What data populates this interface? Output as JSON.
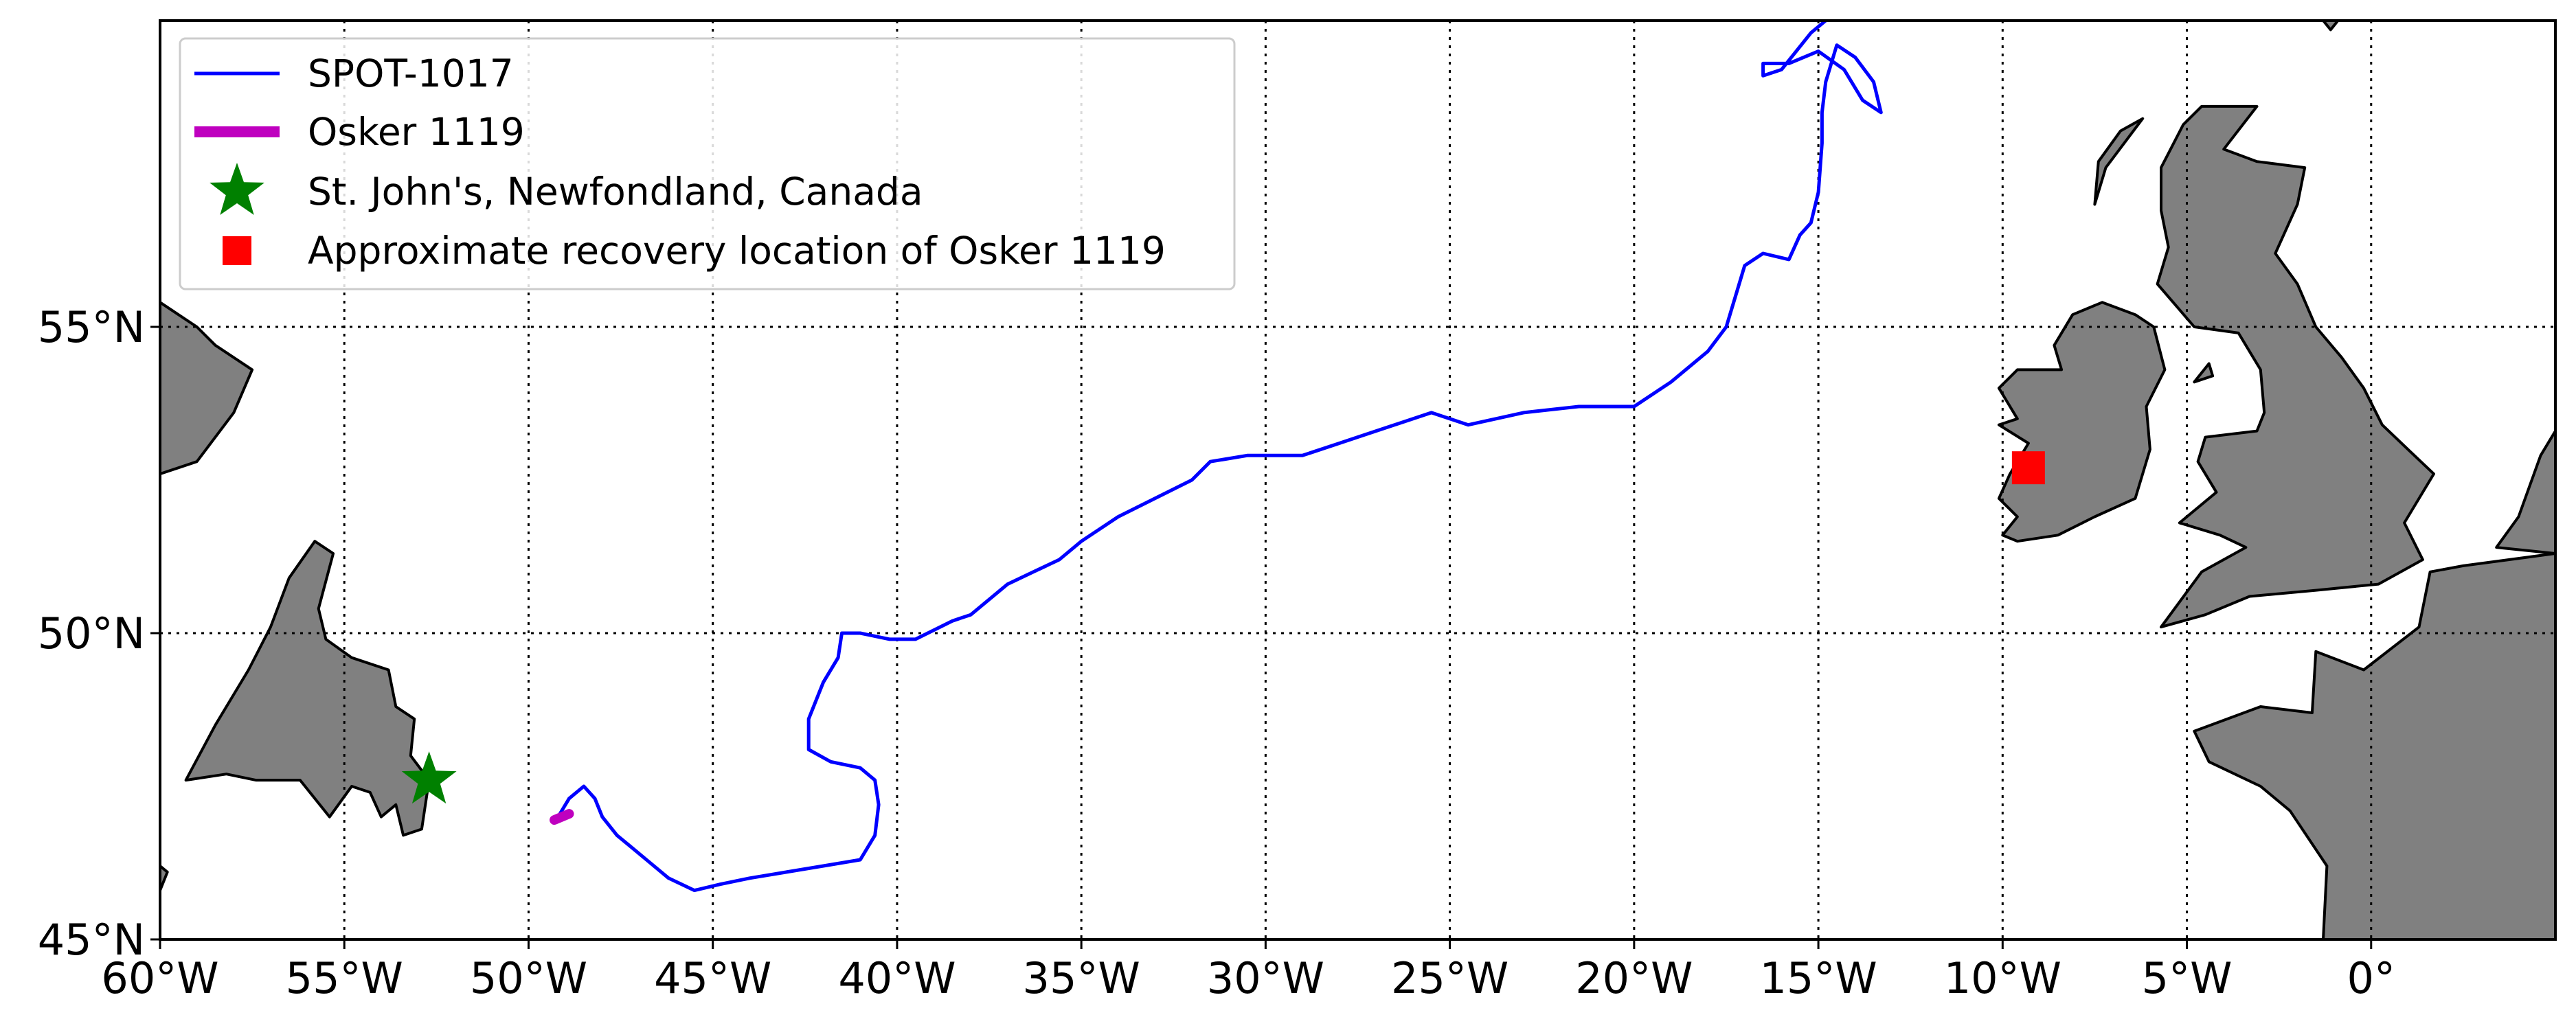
{
  "map": {
    "projection": "equirectangular",
    "lon_range": [
      -60,
      5
    ],
    "lat_range": [
      45,
      60
    ],
    "gridlines": "dotted",
    "x_ticks": [
      {
        "lon": -60,
        "label": "60°W"
      },
      {
        "lon": -55,
        "label": "55°W"
      },
      {
        "lon": -50,
        "label": "50°W"
      },
      {
        "lon": -45,
        "label": "45°W"
      },
      {
        "lon": -40,
        "label": "40°W"
      },
      {
        "lon": -35,
        "label": "35°W"
      },
      {
        "lon": -30,
        "label": "30°W"
      },
      {
        "lon": -25,
        "label": "25°W"
      },
      {
        "lon": -20,
        "label": "20°W"
      },
      {
        "lon": -15,
        "label": "15°W"
      },
      {
        "lon": -10,
        "label": "10°W"
      },
      {
        "lon": -5,
        "label": "5°W"
      },
      {
        "lon": 0,
        "label": "0°"
      }
    ],
    "y_ticks": [
      {
        "lat": 45,
        "label": "45°N"
      },
      {
        "lat": 50,
        "label": "50°N"
      },
      {
        "lat": 55,
        "label": "55°N"
      }
    ],
    "land_color": "#808080",
    "legend": {
      "position": "upper-left",
      "entries": [
        {
          "label": "SPOT-1017",
          "marker": "line",
          "color": "#0000ff"
        },
        {
          "label": "Osker 1119",
          "marker": "thick-line",
          "color": "#bf00bf"
        },
        {
          "label": "St. John's, Newfondland, Canada",
          "marker": "star",
          "color": "#008000"
        },
        {
          "label": "Approximate recovery location of Osker 1119",
          "marker": "square",
          "color": "#ff0000"
        }
      ]
    },
    "markers": {
      "st_johns": {
        "name": "St. John's, Newfondland, Canada",
        "lon": -52.7,
        "lat": 47.6,
        "color": "#008000",
        "shape": "star"
      },
      "recovery": {
        "name": "Approximate recovery location of Osker 1119",
        "lon": -9.3,
        "lat": 52.7,
        "color": "#ff0000",
        "shape": "square"
      }
    },
    "tracks": {
      "spot_1017": {
        "name": "SPOT-1017",
        "color": "#0000ff",
        "points": [
          [
            -49.2,
            47.0
          ],
          [
            -48.9,
            47.3
          ],
          [
            -48.5,
            47.5
          ],
          [
            -48.2,
            47.3
          ],
          [
            -48.0,
            47.0
          ],
          [
            -47.6,
            46.7
          ],
          [
            -47.2,
            46.5
          ],
          [
            -46.8,
            46.3
          ],
          [
            -46.2,
            46.0
          ],
          [
            -45.5,
            45.8
          ],
          [
            -44.8,
            45.9
          ],
          [
            -44.0,
            46.0
          ],
          [
            -43.0,
            46.1
          ],
          [
            -42.0,
            46.2
          ],
          [
            -41.0,
            46.3
          ],
          [
            -40.6,
            46.7
          ],
          [
            -40.5,
            47.2
          ],
          [
            -40.6,
            47.6
          ],
          [
            -41.0,
            47.8
          ],
          [
            -41.8,
            47.9
          ],
          [
            -42.4,
            48.1
          ],
          [
            -42.4,
            48.6
          ],
          [
            -42.0,
            49.2
          ],
          [
            -41.6,
            49.6
          ],
          [
            -41.5,
            50.0
          ],
          [
            -41.0,
            50.0
          ],
          [
            -40.2,
            49.9
          ],
          [
            -39.5,
            49.9
          ],
          [
            -38.5,
            50.2
          ],
          [
            -38.0,
            50.3
          ],
          [
            -37.0,
            50.8
          ],
          [
            -36.3,
            51.0
          ],
          [
            -35.6,
            51.2
          ],
          [
            -35.0,
            51.5
          ],
          [
            -34.0,
            51.9
          ],
          [
            -33.0,
            52.2
          ],
          [
            -32.0,
            52.5
          ],
          [
            -31.5,
            52.8
          ],
          [
            -30.5,
            52.9
          ],
          [
            -29.0,
            52.9
          ],
          [
            -28.0,
            53.1
          ],
          [
            -27.0,
            53.3
          ],
          [
            -25.5,
            53.6
          ],
          [
            -24.5,
            53.4
          ],
          [
            -23.0,
            53.6
          ],
          [
            -21.5,
            53.7
          ],
          [
            -20.0,
            53.7
          ],
          [
            -19.0,
            54.1
          ],
          [
            -18.0,
            54.6
          ],
          [
            -17.5,
            55.0
          ],
          [
            -17.2,
            55.6
          ],
          [
            -17.0,
            56.0
          ],
          [
            -16.5,
            56.2
          ],
          [
            -15.8,
            56.1
          ],
          [
            -15.5,
            56.5
          ],
          [
            -15.2,
            56.7
          ],
          [
            -15.0,
            57.2
          ],
          [
            -14.9,
            58.0
          ],
          [
            -14.9,
            58.5
          ],
          [
            -14.8,
            59.0
          ],
          [
            -14.5,
            59.6
          ],
          [
            -14.0,
            59.4
          ],
          [
            -13.5,
            59.0
          ],
          [
            -13.3,
            58.5
          ],
          [
            -13.8,
            58.7
          ],
          [
            -14.3,
            59.2
          ],
          [
            -15.0,
            59.5
          ],
          [
            -15.8,
            59.3
          ],
          [
            -16.5,
            59.3
          ],
          [
            -16.5,
            59.1
          ],
          [
            -16.0,
            59.2
          ],
          [
            -15.2,
            59.8
          ],
          [
            -14.8,
            60.0
          ]
        ]
      },
      "osker_1119": {
        "name": "Osker 1119",
        "color": "#bf00bf",
        "points": [
          [
            -49.3,
            46.95
          ],
          [
            -48.9,
            47.05
          ]
        ]
      }
    },
    "landmasses": [
      {
        "name": "Newfoundland",
        "points": [
          [
            -59.3,
            47.6
          ],
          [
            -58.5,
            48.5
          ],
          [
            -57.6,
            49.4
          ],
          [
            -57.0,
            50.1
          ],
          [
            -56.5,
            50.9
          ],
          [
            -55.8,
            51.5
          ],
          [
            -55.3,
            51.3
          ],
          [
            -55.7,
            50.4
          ],
          [
            -55.5,
            49.9
          ],
          [
            -54.8,
            49.6
          ],
          [
            -53.8,
            49.4
          ],
          [
            -53.6,
            48.8
          ],
          [
            -53.1,
            48.6
          ],
          [
            -53.2,
            48.0
          ],
          [
            -52.7,
            47.6
          ],
          [
            -52.9,
            46.8
          ],
          [
            -53.4,
            46.7
          ],
          [
            -53.6,
            47.2
          ],
          [
            -54.0,
            47.0
          ],
          [
            -54.3,
            47.4
          ],
          [
            -54.8,
            47.5
          ],
          [
            -55.4,
            47.0
          ],
          [
            -56.2,
            47.6
          ],
          [
            -57.4,
            47.6
          ],
          [
            -58.2,
            47.7
          ]
        ]
      },
      {
        "name": "Labrador",
        "points": [
          [
            -60,
            52.6
          ],
          [
            -59.0,
            52.8
          ],
          [
            -58.0,
            53.6
          ],
          [
            -57.5,
            54.3
          ],
          [
            -58.5,
            54.7
          ],
          [
            -59.0,
            55.0
          ],
          [
            -60,
            55.4
          ]
        ]
      },
      {
        "name": "Cape Breton",
        "points": [
          [
            -60,
            45.8
          ],
          [
            -59.8,
            46.1
          ],
          [
            -60,
            46.2
          ]
        ]
      },
      {
        "name": "Ireland",
        "points": [
          [
            -10.0,
            51.6
          ],
          [
            -9.6,
            51.5
          ],
          [
            -8.5,
            51.6
          ],
          [
            -7.5,
            51.9
          ],
          [
            -6.4,
            52.2
          ],
          [
            -6.0,
            53.0
          ],
          [
            -6.1,
            53.7
          ],
          [
            -5.6,
            54.3
          ],
          [
            -5.9,
            55.0
          ],
          [
            -6.4,
            55.2
          ],
          [
            -7.3,
            55.4
          ],
          [
            -8.1,
            55.2
          ],
          [
            -8.6,
            54.7
          ],
          [
            -8.4,
            54.3
          ],
          [
            -9.6,
            54.3
          ],
          [
            -10.1,
            54.0
          ],
          [
            -9.6,
            53.5
          ],
          [
            -10.1,
            53.4
          ],
          [
            -9.3,
            53.1
          ],
          [
            -9.8,
            52.6
          ],
          [
            -10.1,
            52.2
          ],
          [
            -9.6,
            51.9
          ]
        ]
      },
      {
        "name": "Great Britain",
        "points": [
          [
            -5.7,
            50.1
          ],
          [
            -4.5,
            50.3
          ],
          [
            -3.3,
            50.6
          ],
          [
            -1.5,
            50.7
          ],
          [
            0.2,
            50.8
          ],
          [
            1.4,
            51.2
          ],
          [
            0.9,
            51.8
          ],
          [
            1.7,
            52.6
          ],
          [
            1.0,
            53.0
          ],
          [
            0.3,
            53.4
          ],
          [
            -0.2,
            54.0
          ],
          [
            -0.8,
            54.5
          ],
          [
            -1.5,
            55.0
          ],
          [
            -2.0,
            55.7
          ],
          [
            -2.6,
            56.2
          ],
          [
            -2.0,
            57.0
          ],
          [
            -1.8,
            57.6
          ],
          [
            -3.1,
            57.7
          ],
          [
            -4.0,
            57.9
          ],
          [
            -3.1,
            58.6
          ],
          [
            -4.6,
            58.6
          ],
          [
            -5.1,
            58.3
          ],
          [
            -5.7,
            57.6
          ],
          [
            -5.7,
            56.9
          ],
          [
            -5.5,
            56.3
          ],
          [
            -5.8,
            55.7
          ],
          [
            -4.8,
            55.0
          ],
          [
            -3.6,
            54.9
          ],
          [
            -3.0,
            54.3
          ],
          [
            -2.9,
            53.6
          ],
          [
            -3.1,
            53.3
          ],
          [
            -4.5,
            53.2
          ],
          [
            -4.7,
            52.8
          ],
          [
            -4.2,
            52.3
          ],
          [
            -5.2,
            51.8
          ],
          [
            -4.1,
            51.6
          ],
          [
            -3.4,
            51.4
          ],
          [
            -4.6,
            51.0
          ]
        ]
      },
      {
        "name": "France",
        "points": [
          [
            -4.8,
            48.4
          ],
          [
            -3.0,
            48.8
          ],
          [
            -1.6,
            48.7
          ],
          [
            -1.5,
            49.7
          ],
          [
            -0.2,
            49.4
          ],
          [
            1.3,
            50.1
          ],
          [
            1.6,
            51.0
          ],
          [
            2.5,
            51.1
          ],
          [
            5,
            51.3
          ],
          [
            5,
            45
          ],
          [
            -1.3,
            45
          ],
          [
            -1.2,
            46.2
          ],
          [
            -2.2,
            47.1
          ],
          [
            -3.0,
            47.5
          ],
          [
            -4.4,
            47.9
          ]
        ]
      },
      {
        "name": "Netherlands coast",
        "points": [
          [
            3.4,
            51.4
          ],
          [
            4.0,
            51.9
          ],
          [
            4.6,
            52.9
          ],
          [
            5,
            53.3
          ],
          [
            5,
            51.3
          ]
        ]
      },
      {
        "name": "Outer Hebrides",
        "points": [
          [
            -7.5,
            57.0
          ],
          [
            -7.2,
            57.6
          ],
          [
            -6.2,
            58.4
          ],
          [
            -6.8,
            58.2
          ],
          [
            -7.4,
            57.7
          ]
        ]
      },
      {
        "name": "Isle of Man",
        "points": [
          [
            -4.8,
            54.1
          ],
          [
            -4.4,
            54.4
          ],
          [
            -4.3,
            54.2
          ]
        ]
      },
      {
        "name": "Shetland fragment",
        "points": [
          [
            -1.3,
            60
          ],
          [
            -1.1,
            59.85
          ],
          [
            -0.9,
            60
          ]
        ]
      }
    ]
  }
}
